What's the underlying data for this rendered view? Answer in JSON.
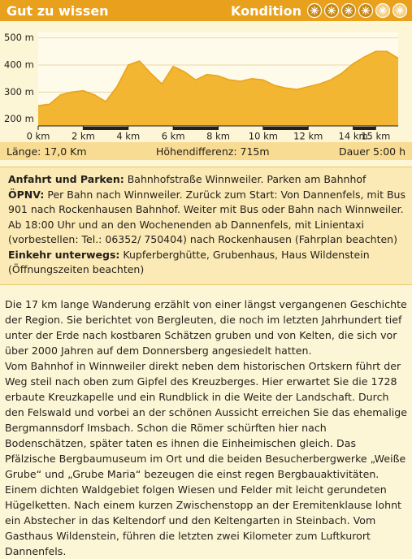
{
  "header": {
    "title": "Gut zu wissen",
    "kondition": "Kondition",
    "rating": 4,
    "rating_max": 6
  },
  "chart_data": {
    "type": "area",
    "color": "#f2b632",
    "line_color": "#e8a21a",
    "x": [
      0,
      0.5,
      1,
      1.5,
      2,
      2.5,
      3,
      3.5,
      4,
      4.5,
      5,
      5.5,
      6,
      6.5,
      7,
      7.5,
      8,
      8.5,
      9,
      9.5,
      10,
      10.5,
      11,
      11.5,
      12,
      12.5,
      13,
      13.5,
      14,
      14.5,
      15,
      15.5,
      16
    ],
    "values": [
      250,
      255,
      290,
      300,
      305,
      290,
      265,
      320,
      400,
      415,
      370,
      330,
      395,
      375,
      345,
      365,
      360,
      345,
      340,
      350,
      345,
      325,
      315,
      310,
      320,
      330,
      345,
      370,
      405,
      430,
      450,
      450,
      425
    ],
    "xlim": [
      0,
      16
    ],
    "ylim": [
      175,
      520
    ],
    "xticks": [
      {
        "value": 0,
        "label": "0 km"
      },
      {
        "value": 2,
        "label": "2 km"
      },
      {
        "value": 4,
        "label": "4 km"
      },
      {
        "value": 6,
        "label": "6 km"
      },
      {
        "value": 8,
        "label": "8 km"
      },
      {
        "value": 10,
        "label": "10 km"
      },
      {
        "value": 12,
        "label": "12 km"
      },
      {
        "value": 14,
        "label": "14 km"
      },
      {
        "value": 15,
        "label": "15 km"
      }
    ],
    "yticks": [
      {
        "value": 500,
        "label": "500 m"
      },
      {
        "value": 400,
        "label": "400 m"
      },
      {
        "value": 300,
        "label": "300 m"
      },
      {
        "value": 200,
        "label": "200 m"
      }
    ],
    "grid": true
  },
  "stats": {
    "length": "Länge: 17,0 Km",
    "elevation": "Höhendifferenz: 715m",
    "duration": "Dauer 5:00 h"
  },
  "info": [
    {
      "label": "Anfahrt und Parken:",
      "text": "Bahnhofstraße Winnweiler. Parken am Bahnhof"
    },
    {
      "label": "ÖPNV:",
      "text": "Per Bahn nach Winnweiler. Zurück zum Start: Von Dannenfels, mit Bus 901 nach Rockenhausen Bahnhof. Weiter mit Bus oder Bahn nach Winnweiler."
    },
    {
      "text": "Ab 18:00 Uhr und an den Wochenenden ab Dannenfels, mit Linientaxi (vorbestellen: Tel.: 06352/ 750404) nach Rockenhausen (Fahrplan beachten)"
    },
    {
      "label": "Einkehr unterwegs:",
      "text": "Kupferberghütte, Grubenhaus, Haus Wildenstein (Öffnungszeiten beachten)"
    }
  ],
  "body": [
    "Die 17 km lange Wanderung erzählt von einer längst vergangenen Geschichte der Region. Sie berichtet von Bergleuten, die noch im letzten Jahrhundert tief unter der Erde nach kostbaren Schätzen gruben und von Kelten, die sich vor über 2000 Jahren auf dem Donnersberg angesiedelt hatten.",
    "Vom Bahnhof in Winnweiler direkt neben dem historischen Ortskern führt der Weg steil nach oben zum Gipfel des Kreuzberges. Hier erwartet Sie die 1728 erbaute Kreuzkapelle und ein Rundblick in die Weite der Landschaft. Durch den Felswald und vorbei an der schönen Aussicht erreichen Sie das ehemalige Bergmannsdorf Imsbach. Schon die Römer schürften hier nach Bodenschätzen, später taten es ihnen die Einheimischen gleich. Das Pfälzische Bergbaumuseum im Ort und die beiden Besucherbergwerke „Weiße Grube“ und „Grube Maria“ bezeugen die einst regen Bergbauaktivitäten. Einem dichten Waldgebiet folgen Wiesen und Felder mit leicht gerundeten Hügelketten. Nach einem kurzen Zwischenstopp an der Eremitenklause lohnt ein Abstecher in das Keltendorf und den Keltengarten in Steinbach. Vom Gasthaus Wildenstein, führen die letzten zwei Kilometer zum Luftkurort Dannenfels."
  ]
}
